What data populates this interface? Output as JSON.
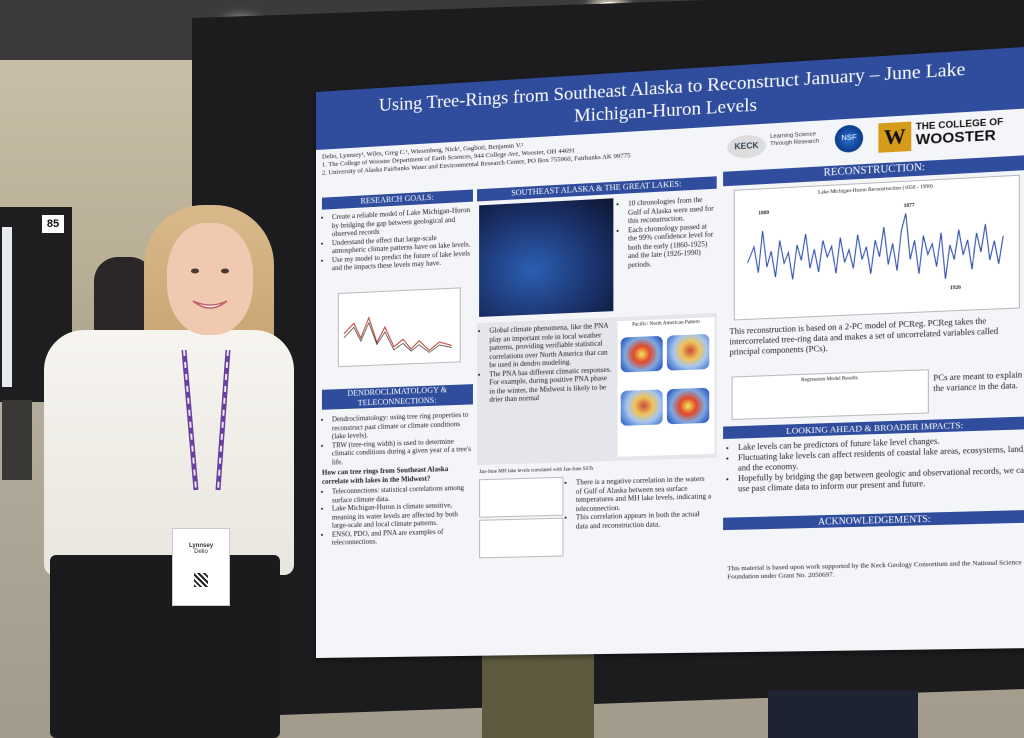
{
  "left_board": {
    "number": "85"
  },
  "poster": {
    "title": "Using Tree-Rings from Southeast Alaska to Reconstruct January – June Lake Michigan-Huron Levels",
    "authors": "Delio, Lynnsey¹, Wiles, Greg C.¹, Wiesenberg, Nick¹, Gaglioti, Benjamin V.²",
    "affiliation_1": "1. The College of Wooster Department of Earth Sciences, 944 College Ave, Wooster, OH 44691",
    "affiliation_2": "2. University of Alaska Fairbanks Water and Environmental Research Center, PO Box 755960, Fairbanks AK 99775",
    "logos": {
      "keck": "KECK",
      "lsr": "Learning Science Through Research",
      "nsf": "NSF",
      "wooster_w": "W",
      "wooster_top": "THE COLLEGE OF",
      "wooster_name": "WOOSTER"
    },
    "sections": {
      "research_goals": {
        "header": "RESEARCH GOALS:",
        "items": [
          "Create a reliable model of Lake Michigan-Huron by bridging the gap between geological and observed records",
          "Understand the effect that large-scale atmospheric climate patterns have on lake levels.",
          "Use my model to predict the future of lake levels and the impacts these levels may have."
        ]
      },
      "dendro": {
        "header": "DENDROCLIMATOLOGY & TELECONNECTIONS:",
        "items": [
          "Dendroclimatology: using tree ring properties to reconstruct past climate or climate conditions (lake levels).",
          "TRW (tree-ring width) is used to determine climatic conditions during a given year of a tree's life.",
          "Teleconnections: statistical correlations among surface climate data.",
          "Lake Michigan-Huron is climate sensitive, meaning its water levels are affected by both large-scale and local climate patterns.",
          "ENSO, PDO, and PNA are examples of teleconnections."
        ],
        "question": "How can tree rings from Southeast Alaska correlate with lakes in the Midwest?"
      },
      "se_alaska": {
        "header": "SOUTHEAST ALASKA & THE GREAT LAKES:",
        "items": [
          "10 chronologies from the Gulf of Alaska were used for this reconstruction.",
          "Each chronology passed at the 99% confidence level for both the early (1860-1925) and the late (1926-1990) periods."
        ],
        "climate_items": [
          "Global climate phenomena, like the PNA play an important role in local weather patterns, providing verifiable statistical correlations over North America that can be used in dendro modeling.",
          "The PNA has different climatic responses. For example, during positive PNA phase in the winter, the Midwest is likely to be drier than normal"
        ],
        "pna_caption": "Pacific/ North American Pattern",
        "corr_caption": "Jan-June MH lake levels correlated with Jan-June SSTs",
        "corr_items": [
          "There is a negative correlation in the waters of Gulf of Alaska between sea surface temperatures and MH lake levels, indicating a teleconnection.",
          "This correlation appears in both the actual data and reconstruction data."
        ]
      },
      "reconstruction": {
        "header": "RECONSTRUCTION:",
        "chart_title": "Lake Michigan-Huron Reconstruction (1650 - 1990)",
        "label_a": "1880",
        "label_b": "1877",
        "label_c": "1926",
        "text": "This reconstruction is based on a 2-PC model of PCReg. PCReg takes the intercorrelated tree-ring data and makes a set of uncorrelated variables called principal components (PCs).",
        "table_title": "Regression Model Results",
        "pcs_text": "PCs are meant to explain the variance in the data."
      },
      "looking_ahead": {
        "header": "LOOKING AHEAD & BROADER IMPACTS:",
        "items": [
          "Lake levels can be predictors of future lake level changes.",
          "Fluctuating lake levels can affect residents of coastal lake areas, ecosystems, land, and the economy.",
          "Hopefully by bridging the gap between geologic and observational records, we can use past climate data to inform our present and future."
        ]
      },
      "acknowledgements": {
        "header": "ACKNOWLEDGEMENTS:",
        "text": "This material is based upon work supported by the Keck Geology Consortium and the National Science Foundation under Grant No. 2050697."
      }
    }
  },
  "badge": {
    "first_name": "Lynnsey",
    "last_name": "Delio"
  }
}
